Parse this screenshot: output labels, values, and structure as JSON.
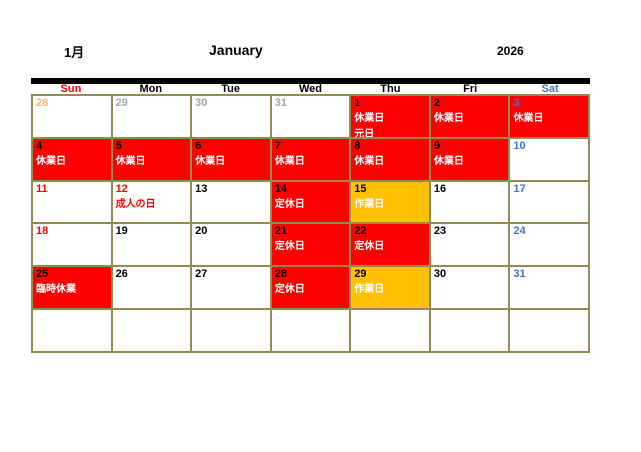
{
  "header": {
    "month_jp": "1月",
    "month_en": "January",
    "year": "2026"
  },
  "colors": {
    "closed_red": "#FF0000",
    "work_orange": "#FFC000",
    "grid_olive": "#948A54",
    "sunday_red": "#FF0000",
    "saturday_blue": "#4472C4",
    "prev_month_sun": "#F4B183",
    "prev_month_gray": "#A6A6A6",
    "weekday_black": "#000000",
    "label_white": "#FFFFFF"
  },
  "weekdays": [
    {
      "label": "Sun",
      "color": "#FF0000"
    },
    {
      "label": "Mon",
      "color": "#000000"
    },
    {
      "label": "Tue",
      "color": "#000000"
    },
    {
      "label": "Wed",
      "color": "#000000"
    },
    {
      "label": "Thu",
      "color": "#000000"
    },
    {
      "label": "Fri",
      "color": "#000000"
    },
    {
      "label": "Sat",
      "color": "#4472C4"
    }
  ],
  "cells": [
    {
      "date": "28",
      "num_color": "#F4B183",
      "bg": "#FFFFFF",
      "labels": []
    },
    {
      "date": "29",
      "num_color": "#A6A6A6",
      "bg": "#FFFFFF",
      "labels": []
    },
    {
      "date": "30",
      "num_color": "#A6A6A6",
      "bg": "#FFFFFF",
      "labels": []
    },
    {
      "date": "31",
      "num_color": "#A6A6A6",
      "bg": "#FFFFFF",
      "labels": []
    },
    {
      "date": "1",
      "num_color": "#000000",
      "bg": "#FF0000",
      "labels": [
        {
          "text": "休業日",
          "color": "#FFFFFF"
        },
        {
          "text": "元日",
          "color": "#FFFFFF"
        }
      ]
    },
    {
      "date": "2",
      "num_color": "#000000",
      "bg": "#FF0000",
      "labels": [
        {
          "text": "休業日",
          "color": "#FFFFFF"
        }
      ]
    },
    {
      "date": "3",
      "num_color": "#4472C4",
      "bg": "#FF0000",
      "labels": [
        {
          "text": "休業日",
          "color": "#FFFFFF"
        }
      ]
    },
    {
      "date": "4",
      "num_color": "#000000",
      "bg": "#FF0000",
      "labels": [
        {
          "text": "休業日",
          "color": "#FFFFFF"
        }
      ]
    },
    {
      "date": "5",
      "num_color": "#000000",
      "bg": "#FF0000",
      "labels": [
        {
          "text": "休業日",
          "color": "#FFFFFF"
        }
      ]
    },
    {
      "date": "6",
      "num_color": "#000000",
      "bg": "#FF0000",
      "labels": [
        {
          "text": "休業日",
          "color": "#FFFFFF"
        }
      ]
    },
    {
      "date": "7",
      "num_color": "#000000",
      "bg": "#FF0000",
      "labels": [
        {
          "text": "休業日",
          "color": "#FFFFFF"
        }
      ]
    },
    {
      "date": "8",
      "num_color": "#000000",
      "bg": "#FF0000",
      "labels": [
        {
          "text": "休業日",
          "color": "#FFFFFF"
        }
      ]
    },
    {
      "date": "9",
      "num_color": "#000000",
      "bg": "#FF0000",
      "labels": [
        {
          "text": "休業日",
          "color": "#FFFFFF"
        }
      ]
    },
    {
      "date": "10",
      "num_color": "#4472C4",
      "bg": "#FFFFFF",
      "labels": []
    },
    {
      "date": "11",
      "num_color": "#FF0000",
      "bg": "#FFFFFF",
      "labels": []
    },
    {
      "date": "12",
      "num_color": "#FF0000",
      "bg": "#FFFFFF",
      "labels": [
        {
          "text": "成人の日",
          "color": "#FF0000"
        }
      ]
    },
    {
      "date": "13",
      "num_color": "#000000",
      "bg": "#FFFFFF",
      "labels": []
    },
    {
      "date": "14",
      "num_color": "#000000",
      "bg": "#FF0000",
      "labels": [
        {
          "text": "定休日",
          "color": "#FFFFFF"
        }
      ]
    },
    {
      "date": "15",
      "num_color": "#000000",
      "bg": "#FFC000",
      "labels": [
        {
          "text": "作業日",
          "color": "#FFFFFF"
        }
      ]
    },
    {
      "date": "16",
      "num_color": "#000000",
      "bg": "#FFFFFF",
      "labels": []
    },
    {
      "date": "17",
      "num_color": "#4472C4",
      "bg": "#FFFFFF",
      "labels": []
    },
    {
      "date": "18",
      "num_color": "#FF0000",
      "bg": "#FFFFFF",
      "labels": []
    },
    {
      "date": "19",
      "num_color": "#000000",
      "bg": "#FFFFFF",
      "labels": []
    },
    {
      "date": "20",
      "num_color": "#000000",
      "bg": "#FFFFFF",
      "labels": []
    },
    {
      "date": "21",
      "num_color": "#000000",
      "bg": "#FF0000",
      "labels": [
        {
          "text": "定休日",
          "color": "#FFFFFF"
        }
      ]
    },
    {
      "date": "22",
      "num_color": "#000000",
      "bg": "#FF0000",
      "labels": [
        {
          "text": "定休日",
          "color": "#FFFFFF"
        }
      ]
    },
    {
      "date": "23",
      "num_color": "#000000",
      "bg": "#FFFFFF",
      "labels": []
    },
    {
      "date": "24",
      "num_color": "#4472C4",
      "bg": "#FFFFFF",
      "labels": []
    },
    {
      "date": "25",
      "num_color": "#000000",
      "bg": "#FF0000",
      "labels": [
        {
          "text": "臨時休業",
          "color": "#FFFFFF"
        }
      ]
    },
    {
      "date": "26",
      "num_color": "#000000",
      "bg": "#FFFFFF",
      "labels": []
    },
    {
      "date": "27",
      "num_color": "#000000",
      "bg": "#FFFFFF",
      "labels": []
    },
    {
      "date": "28",
      "num_color": "#000000",
      "bg": "#FF0000",
      "labels": [
        {
          "text": "定休日",
          "color": "#FFFFFF"
        }
      ]
    },
    {
      "date": "29",
      "num_color": "#000000",
      "bg": "#FFC000",
      "labels": [
        {
          "text": "作業日",
          "color": "#FFFFFF"
        }
      ]
    },
    {
      "date": "30",
      "num_color": "#000000",
      "bg": "#FFFFFF",
      "labels": []
    },
    {
      "date": "31",
      "num_color": "#4472C4",
      "bg": "#FFFFFF",
      "labels": []
    },
    {
      "date": "",
      "num_color": "#000000",
      "bg": "#FFFFFF",
      "labels": []
    },
    {
      "date": "",
      "num_color": "#000000",
      "bg": "#FFFFFF",
      "labels": []
    },
    {
      "date": "",
      "num_color": "#000000",
      "bg": "#FFFFFF",
      "labels": []
    },
    {
      "date": "",
      "num_color": "#000000",
      "bg": "#FFFFFF",
      "labels": []
    },
    {
      "date": "",
      "num_color": "#000000",
      "bg": "#FFFFFF",
      "labels": []
    },
    {
      "date": "",
      "num_color": "#000000",
      "bg": "#FFFFFF",
      "labels": []
    },
    {
      "date": "",
      "num_color": "#000000",
      "bg": "#FFFFFF",
      "labels": []
    }
  ]
}
